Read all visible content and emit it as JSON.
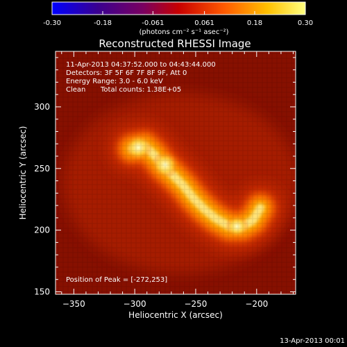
{
  "colorbar": {
    "ticks": [
      "-0.30",
      "-0.18",
      "-0.061",
      "0.061",
      "0.18",
      "0.30"
    ],
    "tick_values": [
      -0.3,
      -0.18,
      -0.061,
      0.061,
      0.18,
      0.3
    ],
    "range": [
      -0.3,
      0.3
    ],
    "units_text": "(photons cm⁻² s⁻¹ asec⁻²)",
    "colormap": "red temperature"
  },
  "image": {
    "title": "Reconstructed RHESSI Image",
    "info": {
      "time_range": "11-Apr-2013 04:37:52.000 to 04:43:44.000",
      "detectors": "Detectors: 3F 5F 6F 7F 8F 9F, Att 0",
      "energy": "Energy Range: 3.0 - 6.0 keV",
      "algorithm": "Clean",
      "counts": "Total counts: 1.38E+05"
    },
    "peak_text": "Position of Peak = [-272,253]",
    "peak": [
      -272,
      253
    ],
    "xlabel": "Heliocentric X (arcsec)",
    "ylabel": "Heliocentric Y (arcsec)",
    "xlim": [
      -365,
      -168
    ],
    "ylim": [
      148,
      345
    ],
    "xticks": [
      {
        "value": -350,
        "label": "−350"
      },
      {
        "value": -300,
        "label": "−300"
      },
      {
        "value": -250,
        "label": "−250"
      },
      {
        "value": -200,
        "label": "−200"
      }
    ],
    "yticks": [
      {
        "value": 150,
        "label": "150"
      },
      {
        "value": 200,
        "label": "200"
      },
      {
        "value": 250,
        "label": "250"
      },
      {
        "value": 300,
        "label": "300"
      }
    ],
    "emission_path": [
      [
        -302,
        266
      ],
      [
        -292,
        268
      ],
      [
        -284,
        261
      ],
      [
        -277,
        252
      ],
      [
        -269,
        245
      ],
      [
        -260,
        236
      ],
      [
        -252,
        226
      ],
      [
        -243,
        217
      ],
      [
        -233,
        209
      ],
      [
        -222,
        203
      ],
      [
        -212,
        203
      ],
      [
        -203,
        208
      ],
      [
        -197,
        218
      ]
    ],
    "hot_spots": [
      {
        "x": -297,
        "y": 267,
        "level": 1.0
      },
      {
        "x": -275,
        "y": 253,
        "level": 1.0
      },
      {
        "x": -216,
        "y": 203,
        "level": 0.85
      }
    ]
  },
  "footer": {
    "timestamp": "13-Apr-2013 00:01"
  }
}
